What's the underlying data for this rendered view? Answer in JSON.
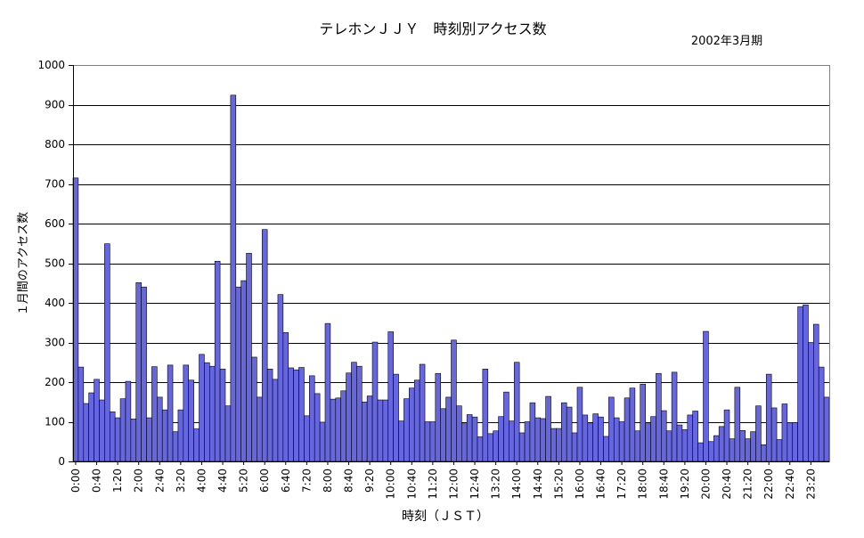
{
  "chart_data": {
    "type": "bar",
    "title": "テレホンＪＪＹ　時刻別アクセス数",
    "subtitle": "2002年3月期",
    "xlabel": "時刻（ＪＳＴ）",
    "ylabel": "１月間のアクセス数",
    "ylim": [
      0,
      1000
    ],
    "yticks": [
      0,
      100,
      200,
      300,
      400,
      500,
      600,
      700,
      800,
      900,
      1000
    ],
    "grid": true,
    "legend": "none",
    "bar_color": "#6666e0",
    "x_tick_labels": [
      "0:00",
      "0:40",
      "1:20",
      "2:00",
      "2:40",
      "3:20",
      "4:00",
      "4:40",
      "5:20",
      "6:00",
      "6:40",
      "7:20",
      "8:00",
      "8:40",
      "9:20",
      "10:00",
      "10:40",
      "11:20",
      "12:00",
      "12:40",
      "13:20",
      "14:00",
      "14:40",
      "15:20",
      "16:00",
      "16:40",
      "17:20",
      "18:00",
      "18:40",
      "19:20",
      "20:00",
      "20:40",
      "21:20",
      "22:00",
      "22:40",
      "23:20"
    ],
    "x_interval_minutes": 10,
    "values": [
      715,
      238,
      146,
      173,
      207,
      155,
      549,
      125,
      110,
      158,
      202,
      107,
      451,
      440,
      110,
      239,
      162,
      130,
      243,
      75,
      130,
      243,
      205,
      82,
      270,
      249,
      240,
      505,
      233,
      140,
      924,
      440,
      456,
      525,
      263,
      162,
      585,
      233,
      207,
      421,
      325,
      236,
      231,
      237,
      115,
      216,
      171,
      99,
      348,
      157,
      160,
      178,
      223,
      250,
      240,
      150,
      165,
      301,
      155,
      155,
      327,
      220,
      102,
      158,
      185,
      205,
      245,
      100,
      100,
      222,
      133,
      162,
      306,
      140,
      95,
      118,
      112,
      62,
      233,
      70,
      77,
      113,
      175,
      102,
      250,
      72,
      100,
      148,
      110,
      108,
      164,
      83,
      83,
      148,
      137,
      72,
      187,
      117,
      95,
      120,
      112,
      63,
      162,
      110,
      100,
      160,
      185,
      77,
      195,
      95,
      113,
      222,
      128,
      77,
      225,
      92,
      80,
      117,
      127,
      47,
      328,
      50,
      65,
      88,
      130,
      57,
      187,
      78,
      57,
      75,
      140,
      42,
      220,
      135,
      55,
      145,
      98,
      98,
      390,
      395,
      300,
      346,
      238,
      162
    ]
  }
}
